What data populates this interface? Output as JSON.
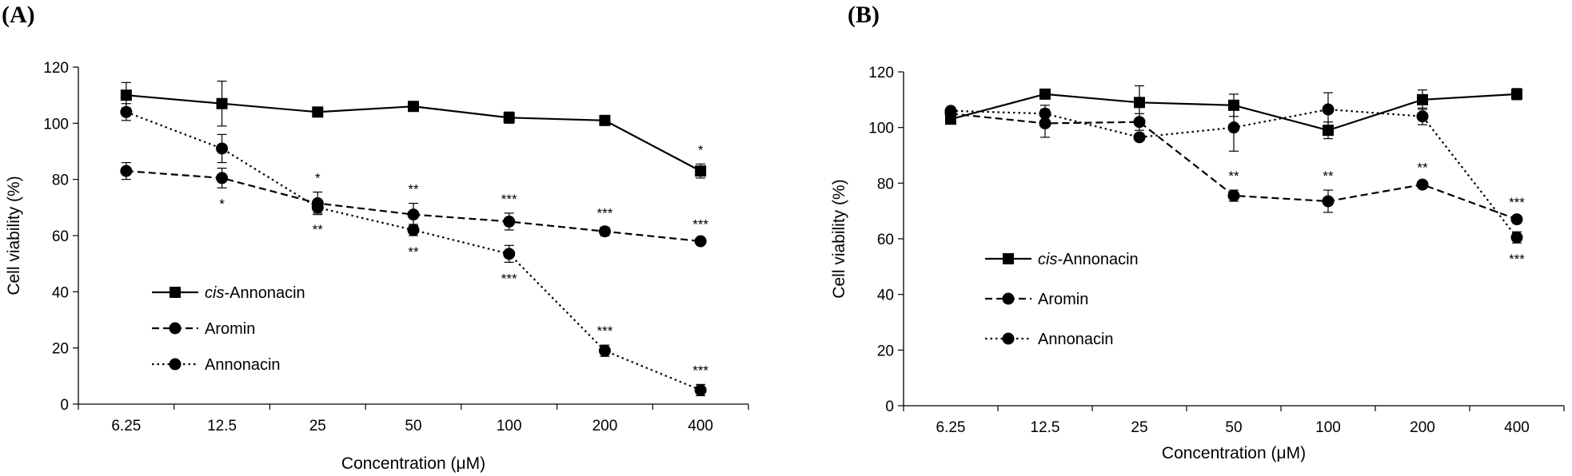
{
  "chart_data": [
    {
      "panel_label": "(A)",
      "type": "line",
      "categories": [
        "6.25",
        "12.5",
        "25",
        "50",
        "100",
        "200",
        "400"
      ],
      "xlabel": "Concentration (μM)",
      "ylabel": "Cell viability (%)",
      "ylim": [
        0,
        120
      ],
      "yticks": [
        0,
        20,
        40,
        60,
        80,
        100,
        120
      ],
      "grid": false,
      "legend_position": "bottom-left",
      "series": [
        {
          "name": "cis-Annonacin",
          "name_italic": "cis",
          "name_rest": "-Annonacin",
          "line_style": "solid",
          "marker": "square",
          "values": [
            110,
            107,
            104,
            106,
            102,
            101,
            83
          ],
          "errors": [
            4.5,
            8,
            1.5,
            1.5,
            2,
            1,
            2.5
          ],
          "annotations": [
            "",
            "",
            "",
            "",
            "",
            "",
            "*"
          ],
          "annotation_side": [
            "",
            "",
            "",
            "",
            "",
            "",
            "above"
          ]
        },
        {
          "name": "Aromin",
          "line_style": "dashed",
          "marker": "circle",
          "values": [
            83,
            80.5,
            71.5,
            67.5,
            65,
            61.5,
            58
          ],
          "errors": [
            3,
            3.5,
            4,
            4,
            3,
            1.5,
            1
          ],
          "annotations": [
            "",
            "*",
            "*",
            "**",
            "***",
            "***",
            "***"
          ],
          "annotation_side": [
            "",
            "below",
            "above",
            "above",
            "above",
            "above",
            "above"
          ]
        },
        {
          "name": "Annonacin",
          "line_style": "dotted",
          "marker": "circle",
          "values": [
            104,
            91,
            70,
            62,
            53.5,
            19,
            5
          ],
          "errors": [
            3,
            5,
            2,
            2,
            3,
            2,
            2
          ],
          "annotations": [
            "",
            "",
            "**",
            "**",
            "***",
            "***",
            "***"
          ],
          "annotation_side": [
            "",
            "",
            "below",
            "below",
            "below",
            "above",
            "above"
          ]
        }
      ]
    },
    {
      "panel_label": "(B)",
      "type": "line",
      "categories": [
        "6.25",
        "12.5",
        "25",
        "50",
        "100",
        "200",
        "400"
      ],
      "xlabel": "Concentration (μM)",
      "ylabel": "Cell viability (%)",
      "ylim": [
        0,
        120
      ],
      "yticks": [
        0,
        20,
        40,
        60,
        80,
        100,
        120
      ],
      "grid": false,
      "legend_position": "middle-left",
      "series": [
        {
          "name": "cis-Annonacin",
          "name_italic": "cis",
          "name_rest": "-Annonacin",
          "line_style": "solid",
          "marker": "square",
          "values": [
            103,
            112,
            109,
            108,
            99,
            110,
            112
          ],
          "errors": [
            1.5,
            1.5,
            6,
            4,
            3,
            3.5,
            2
          ],
          "annotations": [
            "",
            "",
            "",
            "",
            "",
            "",
            ""
          ],
          "annotation_side": [
            "",
            "",
            "",
            "",
            "",
            "",
            ""
          ]
        },
        {
          "name": "Aromin",
          "line_style": "dashed",
          "marker": "circle",
          "values": [
            105,
            101.5,
            102,
            75.5,
            73.5,
            79.5,
            67
          ],
          "errors": [
            1,
            5,
            3,
            2,
            4,
            1,
            1
          ],
          "annotations": [
            "",
            "",
            "",
            "**",
            "**",
            "**",
            "***"
          ],
          "annotation_side": [
            "",
            "",
            "",
            "above",
            "above",
            "above",
            "above"
          ]
        },
        {
          "name": "Annonacin",
          "line_style": "dotted",
          "marker": "circle",
          "values": [
            106,
            105,
            96.5,
            100,
            106.5,
            104,
            60.5
          ],
          "errors": [
            1,
            3,
            1,
            8.5,
            6,
            3,
            2
          ],
          "annotations": [
            "",
            "",
            "",
            "",
            "",
            "",
            "***"
          ],
          "annotation_side": [
            "",
            "",
            "",
            "",
            "",
            "",
            "below"
          ]
        }
      ]
    }
  ]
}
